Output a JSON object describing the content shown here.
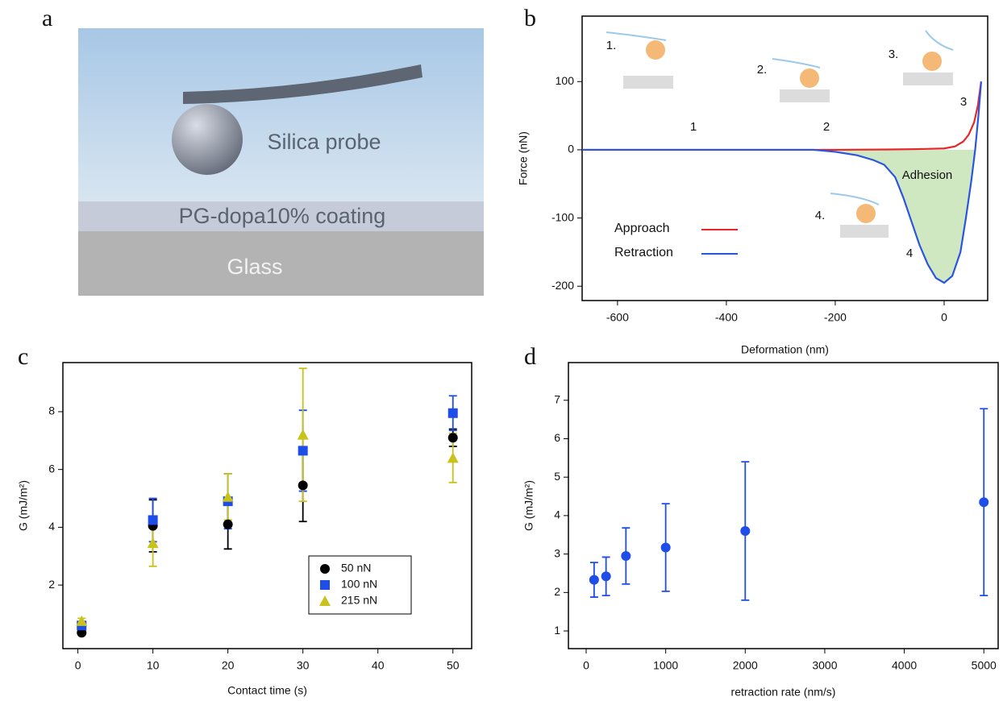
{
  "panel_labels": [
    "a",
    "b",
    "c",
    "d"
  ],
  "diagram": {
    "labels": [
      "Silica probe",
      "PG-dopa10% coating",
      "Glass"
    ]
  },
  "chart_data": [
    {
      "type": "line",
      "x_label": "Deformation (nm)",
      "y_label": "Force (nN)",
      "xlim": [
        -665,
        80
      ],
      "ylim": [
        -221,
        196
      ],
      "xticks": [
        -600,
        -400,
        -200,
        0
      ],
      "yticks": [
        -200,
        -100,
        0,
        100
      ],
      "fill_adhesion": true,
      "fill_color": "#cfe8c2",
      "annotations": [
        "1",
        "2",
        "3",
        "4",
        "Adhesion",
        "1.",
        "2.",
        "3.",
        "4."
      ],
      "series": [
        {
          "name": "Approach",
          "color": "#e8262a",
          "x": [
            -665,
            -400,
            -200,
            -100,
            -50,
            0,
            20,
            35,
            45,
            55,
            62,
            68
          ],
          "values": [
            0,
            0,
            0,
            0.5,
            1,
            2,
            5,
            12,
            22,
            40,
            65,
            100
          ]
        },
        {
          "name": "Retraction",
          "color": "#2a55e0",
          "x": [
            -665,
            -400,
            -240,
            -200,
            -160,
            -130,
            -110,
            -90,
            -75,
            -60,
            -45,
            -30,
            -15,
            0,
            15,
            30,
            40,
            50,
            57,
            63,
            68
          ],
          "values": [
            0,
            0,
            0,
            -3,
            -8,
            -15,
            -22,
            -40,
            -70,
            -105,
            -140,
            -168,
            -188,
            -195,
            -185,
            -150,
            -100,
            -45,
            0,
            50,
            100
          ]
        }
      ]
    },
    {
      "type": "errorscatter",
      "x_label": "Contact time (s)",
      "y_label": "G (mJ/m²)",
      "xlim": [
        -2,
        52.5
      ],
      "ylim": [
        -0.2,
        9.7
      ],
      "xticks": [
        0,
        10,
        20,
        30,
        40,
        50
      ],
      "yticks": [
        2,
        4,
        6,
        8
      ],
      "series": [
        {
          "name": "50 nN",
          "color": "#000000",
          "marker": "circle",
          "x": [
            0.5,
            10,
            20,
            30,
            50
          ],
          "values": [
            0.35,
            4.05,
            4.1,
            5.45,
            7.1
          ],
          "errors": [
            0.05,
            0.9,
            0.85,
            1.25,
            0.3
          ]
        },
        {
          "name": "100 nN",
          "color": "#1f4de8",
          "marker": "square",
          "x": [
            0.5,
            10,
            20,
            30,
            50
          ],
          "values": [
            0.6,
            4.25,
            4.9,
            6.65,
            7.95
          ],
          "errors": [
            0.1,
            0.75,
            0.95,
            1.4,
            0.6
          ]
        },
        {
          "name": "215 nN",
          "color": "#c8c21a",
          "marker": "triangle",
          "x": [
            0.5,
            10,
            20,
            30,
            50
          ],
          "values": [
            0.75,
            3.45,
            5.05,
            7.2,
            6.4
          ],
          "errors": [
            0.1,
            0.8,
            0.8,
            2.3,
            0.85
          ]
        }
      ]
    },
    {
      "type": "errorscatter",
      "x_label": "retraction rate (nm/s)",
      "y_label": "G (mJ/m²)",
      "xlim": [
        -223,
        5180
      ],
      "ylim": [
        0.54,
        7.98
      ],
      "xticks": [
        0,
        1000,
        2000,
        3000,
        4000,
        5000
      ],
      "yticks": [
        1,
        2,
        3,
        4,
        5,
        6,
        7
      ],
      "series": [
        {
          "color": "#1f4de8",
          "marker": "circle",
          "x": [
            100,
            250,
            500,
            1000,
            2000,
            5000
          ],
          "values": [
            2.33,
            2.42,
            2.95,
            3.17,
            3.6,
            4.35
          ],
          "errors": [
            0.45,
            0.5,
            0.73,
            1.14,
            1.8,
            2.43
          ]
        }
      ]
    }
  ]
}
